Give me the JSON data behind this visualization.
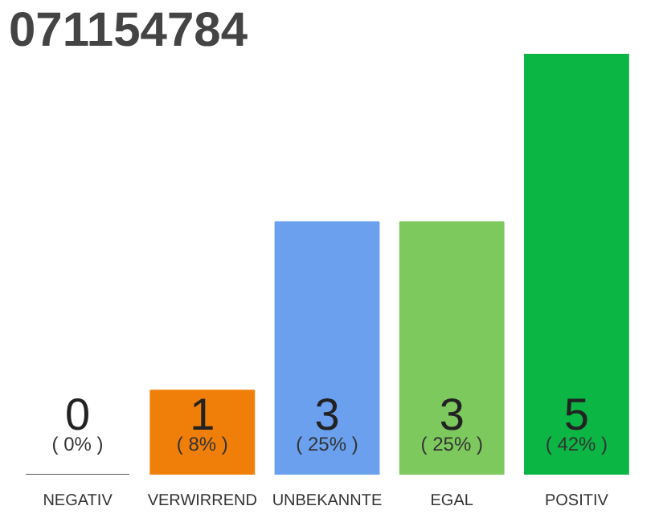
{
  "chart_data": {
    "type": "bar",
    "title": "071154784",
    "categories": [
      "NEGATIV",
      "VERWIRREND",
      "UNBEKANNTE",
      "EGAL",
      "POSITIV"
    ],
    "values": [
      0,
      1,
      3,
      3,
      5
    ],
    "colors": [
      "#555555",
      "#f07f09",
      "#6aa0ee",
      "#7dc95e",
      "#0cb644"
    ],
    "data_labels": true,
    "tick_labels": "x",
    "annotations": [
      {
        "text": "( 0% )",
        "x": "NEGATIV",
        "y": 0
      },
      {
        "text": "( 8% )",
        "x": "VERWIRREND",
        "y": 0
      },
      {
        "text": "( 25% )",
        "x": "UNBEKANNTE",
        "y": 0
      },
      {
        "text": "( 25% )",
        "x": "EGAL",
        "y": 0
      },
      {
        "text": "( 42% )",
        "x": "POSITIV",
        "y": 0
      }
    ]
  }
}
